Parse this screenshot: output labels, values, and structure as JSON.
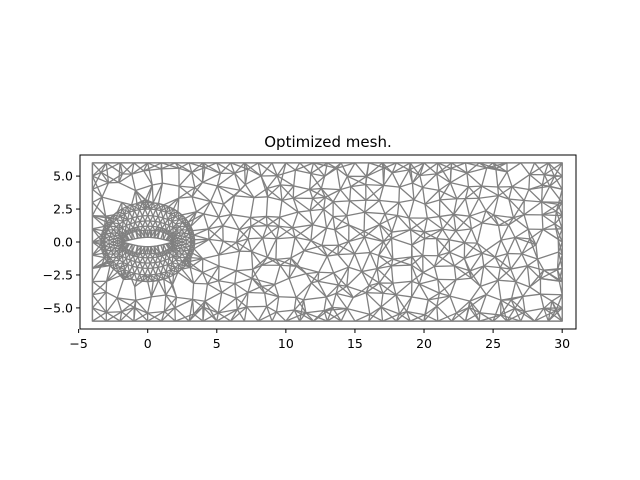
{
  "chart_data": {
    "type": "mesh",
    "title": "Optimized mesh.",
    "xlabel": "",
    "ylabel": "",
    "xlim": [
      -4.9,
      31.0
    ],
    "ylim": [
      -6.6,
      6.6
    ],
    "xticks": [
      -5,
      0,
      5,
      10,
      15,
      20,
      25,
      30
    ],
    "xtick_labels": [
      "−5",
      "0",
      "5",
      "10",
      "15",
      "20",
      "25",
      "30"
    ],
    "yticks": [
      -5.0,
      -2.5,
      0.0,
      2.5,
      5.0
    ],
    "ytick_labels": [
      "−5.0",
      "−2.5",
      "0.0",
      "2.5",
      "5.0"
    ],
    "domain": {
      "x": [
        -4.0,
        30.0
      ],
      "y": [
        -6.0,
        6.0
      ]
    },
    "airfoil": {
      "x": [
        -1.8,
        1.8
      ],
      "half_thickness": 0.35,
      "chord_center": [
        0.0,
        0.0
      ]
    },
    "refinement_rings": [
      {
        "rx": 1.9,
        "ry": 0.9
      },
      {
        "rx": 2.2,
        "ry": 1.2
      },
      {
        "rx": 2.5,
        "ry": 1.6
      },
      {
        "rx": 2.8,
        "ry": 2.0
      },
      {
        "rx": 3.1,
        "ry": 2.5
      },
      {
        "rx": 3.4,
        "ry": 3.0
      }
    ],
    "grid": false,
    "edge_color": "#808080"
  }
}
